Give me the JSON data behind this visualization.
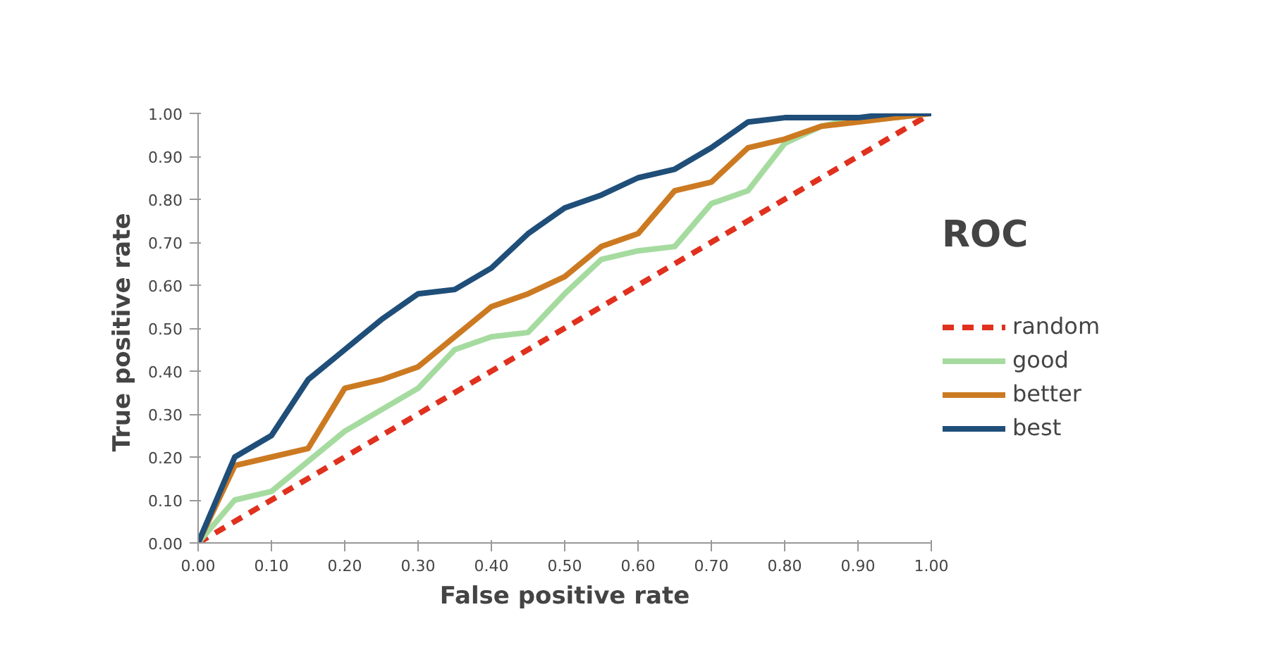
{
  "chart_data": {
    "type": "line",
    "title": "ROC",
    "xlabel": "False positive rate",
    "ylabel": "True  positive rate",
    "x": [
      0,
      0.05,
      0.1,
      0.15,
      0.2,
      0.25,
      0.3,
      0.35,
      0.4,
      0.45,
      0.5,
      0.55,
      0.6,
      0.65,
      0.7,
      0.75,
      0.8,
      0.85,
      0.9,
      0.95,
      1.0
    ],
    "series": [
      {
        "name": "random",
        "color": "#e0301e",
        "line_style": "dashed",
        "x": [
          0,
          1
        ],
        "values": [
          0,
          1
        ]
      },
      {
        "name": "good",
        "color": "#a6dba0",
        "values": [
          0,
          0.1,
          0.12,
          0.19,
          0.26,
          0.31,
          0.36,
          0.45,
          0.48,
          0.49,
          0.58,
          0.66,
          0.68,
          0.69,
          0.79,
          0.82,
          0.93,
          0.97,
          0.99,
          0.99,
          1.0
        ]
      },
      {
        "name": "better",
        "color": "#cc7a22",
        "values": [
          0,
          0.18,
          0.2,
          0.22,
          0.36,
          0.38,
          0.41,
          0.48,
          0.55,
          0.58,
          0.62,
          0.69,
          0.72,
          0.82,
          0.84,
          0.92,
          0.94,
          0.97,
          0.98,
          0.99,
          1.0
        ]
      },
      {
        "name": "best",
        "color": "#1f4e79",
        "values": [
          0,
          0.2,
          0.25,
          0.38,
          0.45,
          0.52,
          0.58,
          0.59,
          0.64,
          0.72,
          0.78,
          0.81,
          0.85,
          0.87,
          0.92,
          0.98,
          0.99,
          0.99,
          0.99,
          1.0,
          1.0
        ]
      }
    ],
    "xlim": [
      0,
      1
    ],
    "ylim": [
      0,
      1
    ],
    "xticks": [
      {
        "value": 0,
        "label": "0.00"
      },
      {
        "value": 0.1,
        "label": "0.10"
      },
      {
        "value": 0.2,
        "label": "0.20"
      },
      {
        "value": 0.3,
        "label": "0.30"
      },
      {
        "value": 0.4,
        "label": "0.40"
      },
      {
        "value": 0.5,
        "label": "0.50"
      },
      {
        "value": 0.6,
        "label": "0.60"
      },
      {
        "value": 0.7,
        "label": "0.70"
      },
      {
        "value": 0.8,
        "label": "0.80"
      },
      {
        "value": 0.9,
        "label": "0.90"
      },
      {
        "value": 1,
        "label": "1.00"
      }
    ],
    "yticks": [
      {
        "value": 0,
        "label": "0.00"
      },
      {
        "value": 0.1,
        "label": "0.10"
      },
      {
        "value": 0.2,
        "label": "0.20"
      },
      {
        "value": 0.3,
        "label": "0.30"
      },
      {
        "value": 0.4,
        "label": "0.40"
      },
      {
        "value": 0.5,
        "label": "0.50"
      },
      {
        "value": 0.6,
        "label": "0.60"
      },
      {
        "value": 0.7,
        "label": "0.70"
      },
      {
        "value": 0.8,
        "label": "0.80"
      },
      {
        "value": 0.9,
        "label": "0.90"
      },
      {
        "value": 1,
        "label": "1.00"
      }
    ],
    "grid": false,
    "legend": "right",
    "marker": "none",
    "line_style": "solid"
  }
}
